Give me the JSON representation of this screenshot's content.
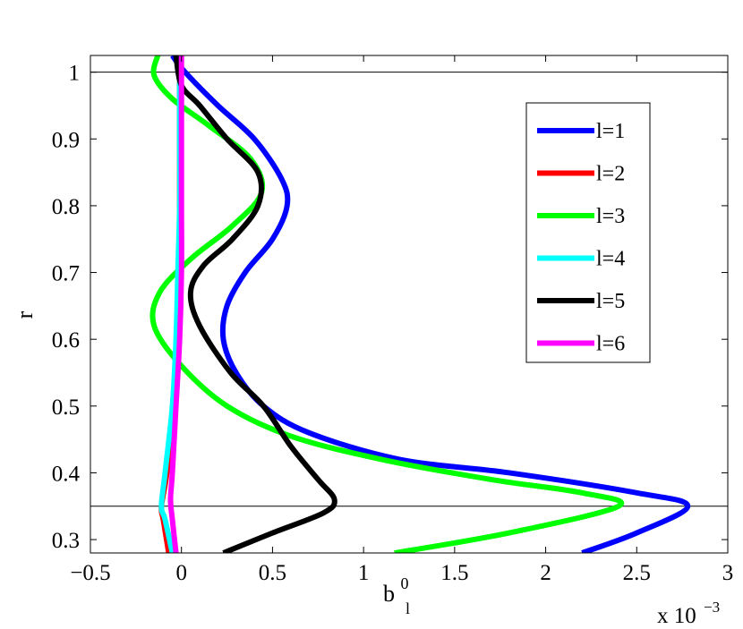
{
  "chart_data": {
    "type": "line",
    "xlabel_base": "b",
    "xlabel_sub": "l",
    "xlabel_sup": "0",
    "x_multiplier_base": "x 10",
    "x_multiplier_exp": "−3",
    "ylabel": "r",
    "xlim": [
      -0.5,
      3
    ],
    "ylim": [
      0.28,
      1.025
    ],
    "x_ticks": [
      -0.5,
      0,
      0.5,
      1,
      1.5,
      2,
      2.5,
      3
    ],
    "x_tick_labels": [
      "−0.5",
      "0",
      "0.5",
      "1",
      "1.5",
      "2",
      "2.5",
      "3"
    ],
    "y_ticks": [
      0.3,
      0.4,
      0.5,
      0.6,
      0.7,
      0.8,
      0.9,
      1
    ],
    "y_tick_labels": [
      "0.3",
      "0.4",
      "0.5",
      "0.6",
      "0.7",
      "0.8",
      "0.9",
      "1"
    ],
    "reference_lines_y": [
      1.0,
      0.35
    ],
    "grid": false,
    "legend_position": "top-right",
    "series": [
      {
        "name": "l=1",
        "color": "#0000ff",
        "points": [
          [
            2.2,
            0.28
          ],
          [
            2.5,
            0.31
          ],
          [
            2.78,
            0.35
          ],
          [
            2.5,
            0.37
          ],
          [
            1.8,
            0.4
          ],
          [
            1.2,
            0.42
          ],
          [
            0.7,
            0.46
          ],
          [
            0.45,
            0.5
          ],
          [
            0.3,
            0.55
          ],
          [
            0.23,
            0.6
          ],
          [
            0.25,
            0.65
          ],
          [
            0.35,
            0.7
          ],
          [
            0.5,
            0.75
          ],
          [
            0.58,
            0.8
          ],
          [
            0.55,
            0.84
          ],
          [
            0.4,
            0.9
          ],
          [
            0.2,
            0.95
          ],
          [
            0.02,
            1.0
          ],
          [
            -0.05,
            1.025
          ]
        ]
      },
      {
        "name": "l=2",
        "color": "#ff0000",
        "points": [
          [
            -0.07,
            0.28
          ],
          [
            -0.1,
            0.33
          ],
          [
            -0.11,
            0.35
          ],
          [
            -0.08,
            0.4
          ],
          [
            -0.04,
            0.5
          ],
          [
            -0.02,
            0.6
          ],
          [
            -0.01,
            0.7
          ],
          [
            -0.01,
            0.8
          ],
          [
            -0.01,
            0.9
          ],
          [
            -0.01,
            1.025
          ]
        ]
      },
      {
        "name": "l=3",
        "color": "#00ff00",
        "points": [
          [
            1.17,
            0.28
          ],
          [
            1.8,
            0.31
          ],
          [
            2.4,
            0.35
          ],
          [
            2.2,
            0.37
          ],
          [
            1.7,
            0.39
          ],
          [
            1.1,
            0.42
          ],
          [
            0.6,
            0.455
          ],
          [
            0.25,
            0.5
          ],
          [
            0.0,
            0.56
          ],
          [
            -0.15,
            0.62
          ],
          [
            -0.12,
            0.67
          ],
          [
            0.05,
            0.72
          ],
          [
            0.28,
            0.77
          ],
          [
            0.44,
            0.82
          ],
          [
            0.38,
            0.87
          ],
          [
            0.15,
            0.92
          ],
          [
            -0.05,
            0.96
          ],
          [
            -0.15,
            0.995
          ],
          [
            -0.13,
            1.025
          ]
        ]
      },
      {
        "name": "l=4",
        "color": "#00ffff",
        "points": [
          [
            -0.05,
            0.28
          ],
          [
            -0.09,
            0.33
          ],
          [
            -0.11,
            0.35
          ],
          [
            -0.09,
            0.4
          ],
          [
            -0.05,
            0.5
          ],
          [
            -0.03,
            0.6
          ],
          [
            -0.02,
            0.7
          ],
          [
            -0.01,
            0.8
          ],
          [
            -0.01,
            0.9
          ],
          [
            -0.01,
            1.025
          ]
        ]
      },
      {
        "name": "l=5",
        "color": "#000000",
        "points": [
          [
            0.23,
            0.28
          ],
          [
            0.5,
            0.31
          ],
          [
            0.78,
            0.34
          ],
          [
            0.84,
            0.36
          ],
          [
            0.75,
            0.39
          ],
          [
            0.6,
            0.44
          ],
          [
            0.45,
            0.5
          ],
          [
            0.27,
            0.55
          ],
          [
            0.1,
            0.62
          ],
          [
            0.05,
            0.67
          ],
          [
            0.12,
            0.71
          ],
          [
            0.28,
            0.75
          ],
          [
            0.42,
            0.8
          ],
          [
            0.42,
            0.85
          ],
          [
            0.25,
            0.9
          ],
          [
            0.1,
            0.95
          ],
          [
            0.0,
            0.98
          ],
          [
            -0.03,
            1.025
          ]
        ]
      },
      {
        "name": "l=6",
        "color": "#ff00ff",
        "points": [
          [
            -0.03,
            0.28
          ],
          [
            -0.05,
            0.33
          ],
          [
            -0.06,
            0.36
          ],
          [
            -0.05,
            0.4
          ],
          [
            -0.03,
            0.5
          ],
          [
            -0.01,
            0.6
          ],
          [
            0.0,
            0.7
          ],
          [
            0.0,
            0.8
          ],
          [
            0.0,
            0.9
          ],
          [
            0.0,
            1.025
          ]
        ]
      }
    ]
  }
}
